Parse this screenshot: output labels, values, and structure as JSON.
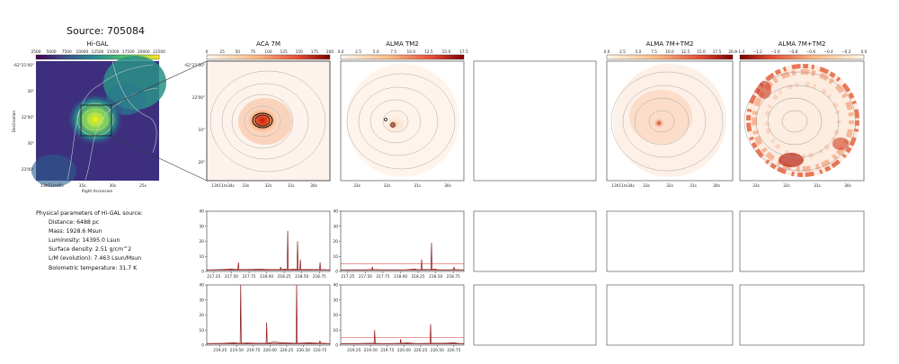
{
  "figure": {
    "title": "Source: 705084"
  },
  "panels": {
    "higal": {
      "title": "Hi-GAL",
      "colorbar_ticks": [
        "2500",
        "5000",
        "7500",
        "10000",
        "12500",
        "15000",
        "17500",
        "20000",
        "22500"
      ],
      "ytick_labels": [
        "-62°21'00\"",
        "30\"",
        "22'00\"",
        "30\"",
        "23'00\""
      ],
      "xtick_labels": [
        "13h11m40s",
        "35s",
        "30s",
        "25s"
      ],
      "xlabel": "Right Ascension",
      "ylabel": "Declination"
    },
    "aca": {
      "title": "ACA 7M",
      "colorbar_ticks": [
        "0",
        "25",
        "50",
        "75",
        "100",
        "125",
        "150",
        "175",
        "200"
      ],
      "ytick_labels": [
        "-62°21'50\"",
        "22'00\"",
        "10\"",
        "20\""
      ],
      "xtick_labels": [
        "13h11m34s",
        "33s",
        "32s",
        "31s",
        "30s"
      ]
    },
    "tm2": {
      "title": "ALMA TM2",
      "colorbar_ticks": [
        "0.0",
        "2.5",
        "5.0",
        "7.5",
        "10.0",
        "12.5",
        "15.0",
        "17.5"
      ],
      "xtick_labels": [
        "33s",
        "32s",
        "31s",
        "30s"
      ]
    },
    "m7tm2": {
      "title": "ALMA 7M+TM2",
      "colorbar_ticks": [
        "0.0",
        "2.5",
        "5.0",
        "7.5",
        "10.0",
        "12.5",
        "15.0",
        "17.5",
        "20.0"
      ],
      "xtick_labels": [
        "13h11m34s",
        "33s",
        "32s",
        "31s",
        "30s"
      ]
    },
    "m7tm2b": {
      "title": "ALMA 7M+TM2",
      "colorbar_ticks": [
        "−1.4",
        "−1.2",
        "−1.0",
        "−0.8",
        "−0.6",
        "−0.4",
        "−0.2",
        "0.0"
      ],
      "xtick_labels": [
        "33s",
        "32s",
        "31s",
        "30s"
      ]
    }
  },
  "params": {
    "header": "Physical parameters of Hi-GAL source:",
    "lines": [
      "Distance: 6488 pc",
      "Mass: 1928.6 Msun",
      "Luminosity: 14395.0 Lsun",
      "Surface density: 2.51 g/cm^2",
      "L/M (evolution): 7.463 Lsun/Msun",
      "Bolometric temperature: 31.7 K"
    ]
  },
  "chart_data": [
    {
      "type": "line",
      "panel": "aca-spectrum-1",
      "x": [
        217.2,
        217.35,
        217.5,
        217.6,
        217.75,
        217.9,
        218.05,
        218.2,
        218.26,
        218.3,
        218.42,
        218.44,
        218.48,
        218.55,
        218.7,
        218.76,
        218.85
      ],
      "values": [
        1,
        1.2,
        1.5,
        6,
        1.3,
        1.4,
        1.2,
        3,
        1.5,
        27,
        1.6,
        20,
        8,
        1.3,
        1.2,
        6,
        1.1
      ],
      "ylim": [
        0,
        40
      ],
      "yticks": [
        0,
        10,
        20,
        30,
        40
      ],
      "xticks": [
        "217.25",
        "217.50",
        "217.75",
        "218.00",
        "218.25",
        "218.50",
        "218.75"
      ]
    },
    {
      "type": "line",
      "panel": "tm2-spectrum-1",
      "x": [
        217.2,
        217.35,
        217.5,
        217.6,
        217.75,
        217.9,
        218.05,
        218.2,
        218.26,
        218.3,
        218.42,
        218.44,
        218.48,
        218.55,
        218.7,
        218.76,
        218.85
      ],
      "values": [
        1,
        1,
        1,
        3,
        1,
        1,
        1,
        1.5,
        1,
        8,
        1.2,
        19,
        1.5,
        1,
        1,
        3,
        1
      ],
      "ylim": [
        0,
        40
      ],
      "yticks": [
        0,
        10,
        20,
        30,
        40
      ],
      "xticks": [
        "217.25",
        "217.50",
        "217.75",
        "218.00",
        "218.25",
        "218.50",
        "218.75"
      ]
    },
    {
      "type": "line",
      "panel": "aca-spectrum-2",
      "x": [
        219.1,
        219.3,
        219.45,
        219.56,
        219.65,
        219.8,
        219.95,
        220.05,
        220.2,
        220.4,
        220.6,
        220.75,
        220.85
      ],
      "values": [
        1,
        1.2,
        1.5,
        40,
        1.4,
        1.2,
        15,
        2,
        1.5,
        40,
        1.5,
        3,
        1.2
      ],
      "ylim": [
        0,
        40
      ],
      "yticks": [
        0,
        10,
        20,
        30,
        40
      ],
      "xticks": [
        "219.25",
        "219.50",
        "219.75",
        "220.00",
        "220.25",
        "220.50",
        "220.75"
      ]
    },
    {
      "type": "line",
      "panel": "tm2-spectrum-2",
      "x": [
        219.1,
        219.3,
        219.45,
        219.56,
        219.65,
        219.8,
        219.95,
        220.05,
        220.2,
        220.4,
        220.6,
        220.75,
        220.85
      ],
      "values": [
        1,
        1,
        1.2,
        10,
        1,
        1,
        4,
        1.5,
        1,
        14,
        1.2,
        1.5,
        1
      ],
      "ylim": [
        0,
        40
      ],
      "yticks": [
        0,
        10,
        20,
        30,
        40
      ],
      "xticks": [
        "219.25",
        "219.50",
        "219.75",
        "220.00",
        "220.25",
        "220.50",
        "220.75"
      ]
    }
  ]
}
